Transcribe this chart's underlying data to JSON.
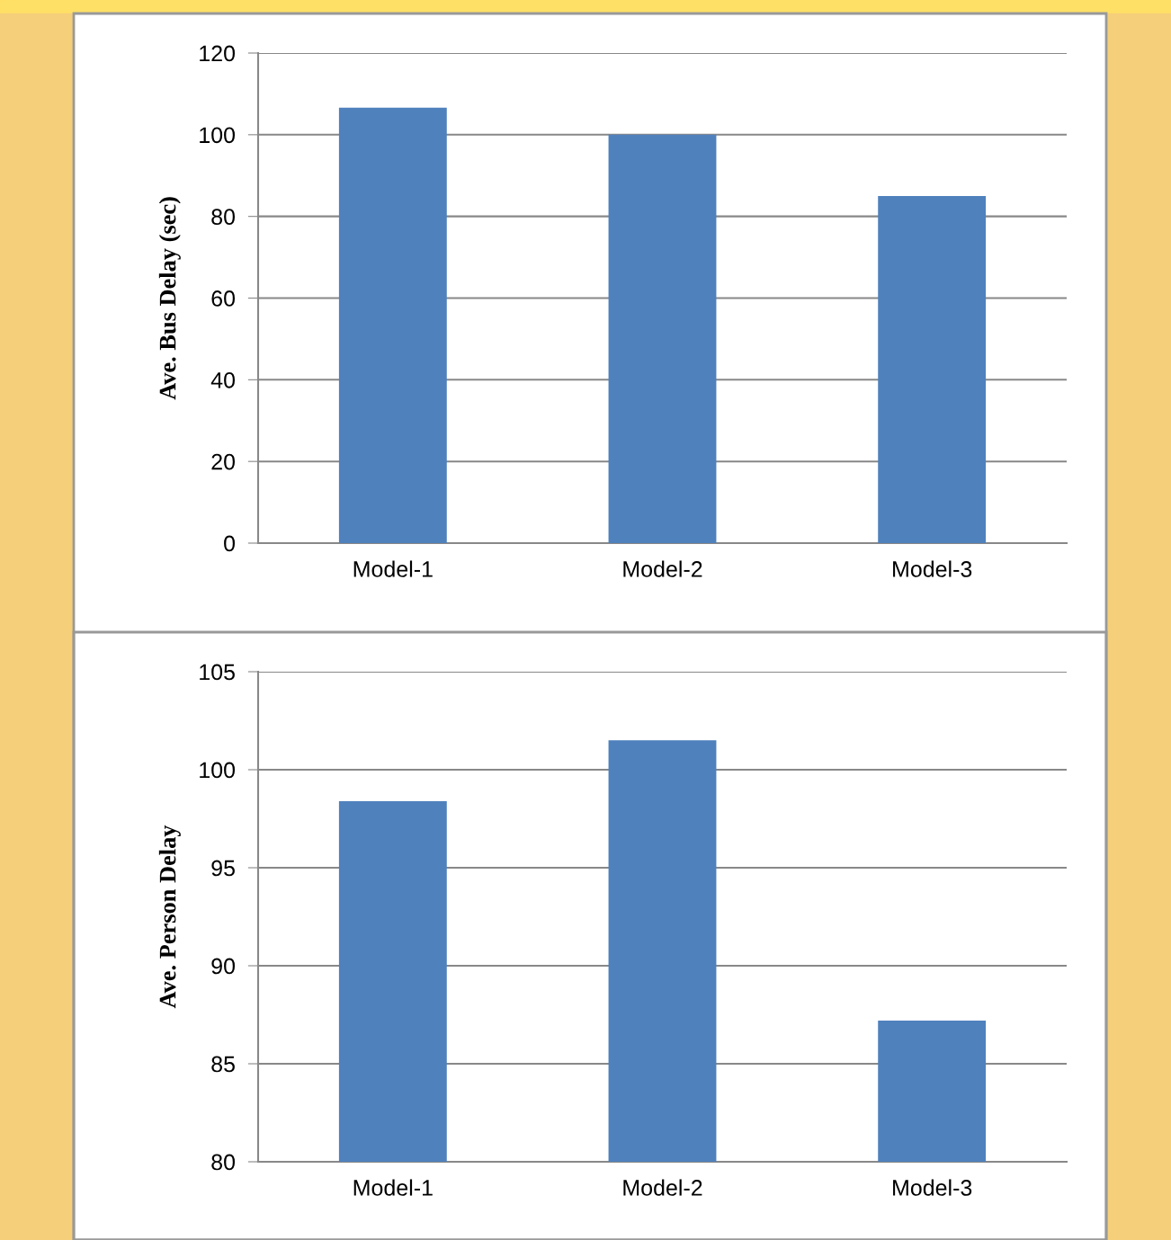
{
  "chart_data": [
    {
      "type": "bar",
      "ylabel": "Ave. Bus Delay (sec)",
      "categories": [
        "Model-1",
        "Model-2",
        "Model-3"
      ],
      "values": [
        106.6,
        100,
        85
      ],
      "color": "#4f81bd",
      "ylim": [
        0,
        120
      ],
      "yticks": [
        0,
        20,
        40,
        60,
        80,
        100,
        120
      ],
      "grid": "y"
    },
    {
      "type": "bar",
      "ylabel": "Ave. Person Delay",
      "categories": [
        "Model-1",
        "Model-2",
        "Model-3"
      ],
      "values": [
        98.4,
        101.5,
        87.2
      ],
      "color": "#4f81bd",
      "ylim": [
        80,
        105
      ],
      "yticks": [
        80,
        85,
        90,
        95,
        100,
        105
      ],
      "grid": "y"
    }
  ]
}
